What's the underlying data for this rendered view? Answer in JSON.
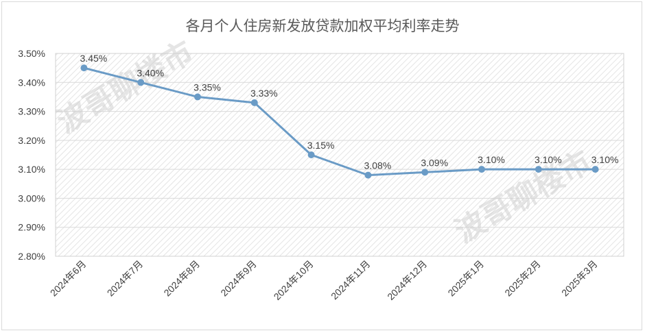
{
  "chart_data": {
    "type": "line",
    "title": "各月个人住房新发放贷款加权平均利率走势",
    "categories": [
      "2024年6月",
      "2024年7月",
      "2024年8月",
      "2024年9月",
      "2024年10月",
      "2024年11月",
      "2024年12月",
      "2025年1月",
      "2025年2月",
      "2025年3月"
    ],
    "values": [
      3.45,
      3.4,
      3.35,
      3.33,
      3.15,
      3.08,
      3.09,
      3.1,
      3.1,
      3.1
    ],
    "data_labels": [
      "3.45%",
      "3.40%",
      "3.35%",
      "3.33%",
      "3.15%",
      "3.08%",
      "3.09%",
      "3.10%",
      "3.10%",
      "3.10%"
    ],
    "ylim": [
      2.8,
      3.5
    ],
    "yticks": [
      "2.80%",
      "2.90%",
      "3.00%",
      "3.10%",
      "3.20%",
      "3.30%",
      "3.40%",
      "3.50%"
    ],
    "grid": true,
    "legend": "none",
    "watermark": "波哥聊楼市",
    "colors": {
      "line": "#6a9bc6",
      "marker": "#6a9bc6",
      "grid": "#d9d9d9",
      "hatch": "#e2e2e2"
    }
  }
}
